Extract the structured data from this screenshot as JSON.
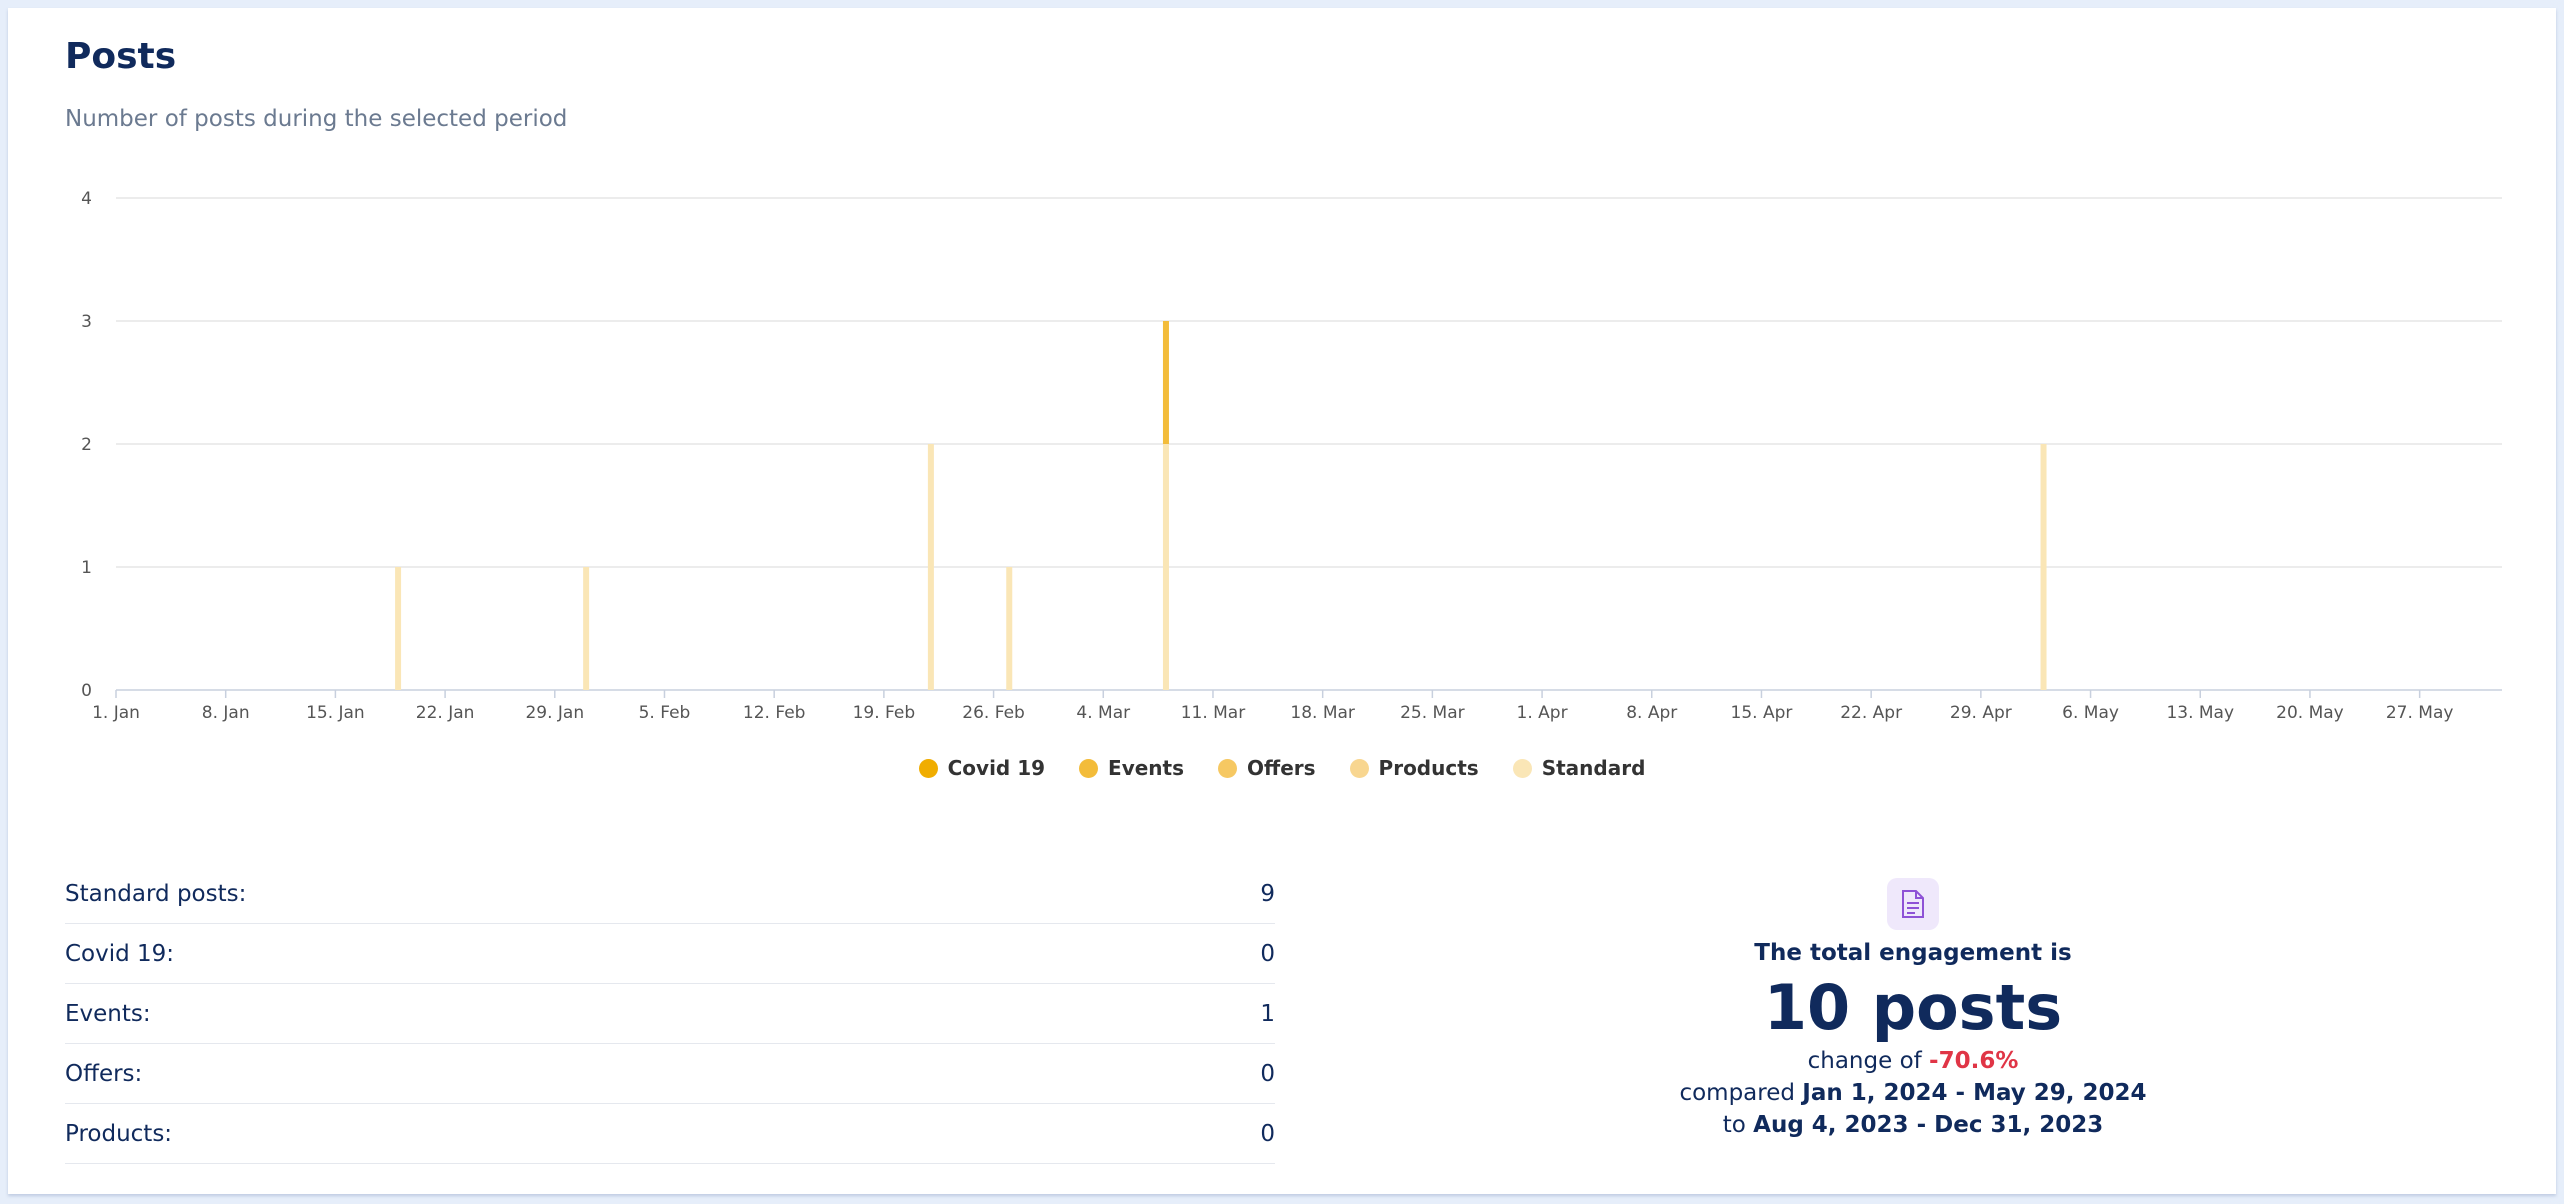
{
  "header": {
    "title": "Posts",
    "subtitle": "Number of posts during the selected period"
  },
  "chart_data": {
    "type": "bar",
    "stacked": true,
    "x": [
      "2024-01-19",
      "2024-01-31",
      "2024-02-22",
      "2024-02-27",
      "2024-03-08",
      "2024-05-03"
    ],
    "series": [
      {
        "name": "Covid 19",
        "color": "#f0ad00",
        "values": [
          0,
          0,
          0,
          0,
          0,
          0
        ]
      },
      {
        "name": "Events",
        "color": "#f3bc3a",
        "values": [
          0,
          0,
          0,
          0,
          1,
          0
        ]
      },
      {
        "name": "Offers",
        "color": "#f6c862",
        "values": [
          0,
          0,
          0,
          0,
          0,
          0
        ]
      },
      {
        "name": "Products",
        "color": "#f8d690",
        "values": [
          0,
          0,
          0,
          0,
          0,
          0
        ]
      },
      {
        "name": "Standard",
        "color": "#fae6b6",
        "values": [
          1,
          1,
          2,
          1,
          2,
          2
        ]
      }
    ],
    "xticks": [
      "1. Jan",
      "8. Jan",
      "15. Jan",
      "22. Jan",
      "29. Jan",
      "5. Feb",
      "12. Feb",
      "19. Feb",
      "26. Feb",
      "4. Mar",
      "11. Mar",
      "18. Mar",
      "25. Mar",
      "1. Apr",
      "8. Apr",
      "15. Apr",
      "22. Apr",
      "29. Apr",
      "6. May",
      "13. May",
      "20. May",
      "27. May"
    ],
    "xlim": [
      "2024-01-01",
      "2024-06-01"
    ],
    "ylim": [
      0,
      4
    ],
    "yticks": [
      0,
      1,
      2,
      3,
      4
    ],
    "grid": true,
    "legend": "bottom-center"
  },
  "stats": [
    {
      "label": "Standard posts:",
      "value": "9"
    },
    {
      "label": "Covid 19:",
      "value": "0"
    },
    {
      "label": "Events:",
      "value": "1"
    },
    {
      "label": "Offers:",
      "value": "0"
    },
    {
      "label": "Products:",
      "value": "0"
    }
  ],
  "summary": {
    "icon": "document-icon",
    "label": "The total engagement is",
    "value": "10 posts",
    "change_prefix": "change of",
    "change_value": "-70.6%",
    "compared_prefix": "compared",
    "compared_range": "Jan 1, 2024 - May 29, 2024",
    "to_prefix": "to",
    "to_range": "Aug 4, 2023 - Dec 31, 2023"
  }
}
